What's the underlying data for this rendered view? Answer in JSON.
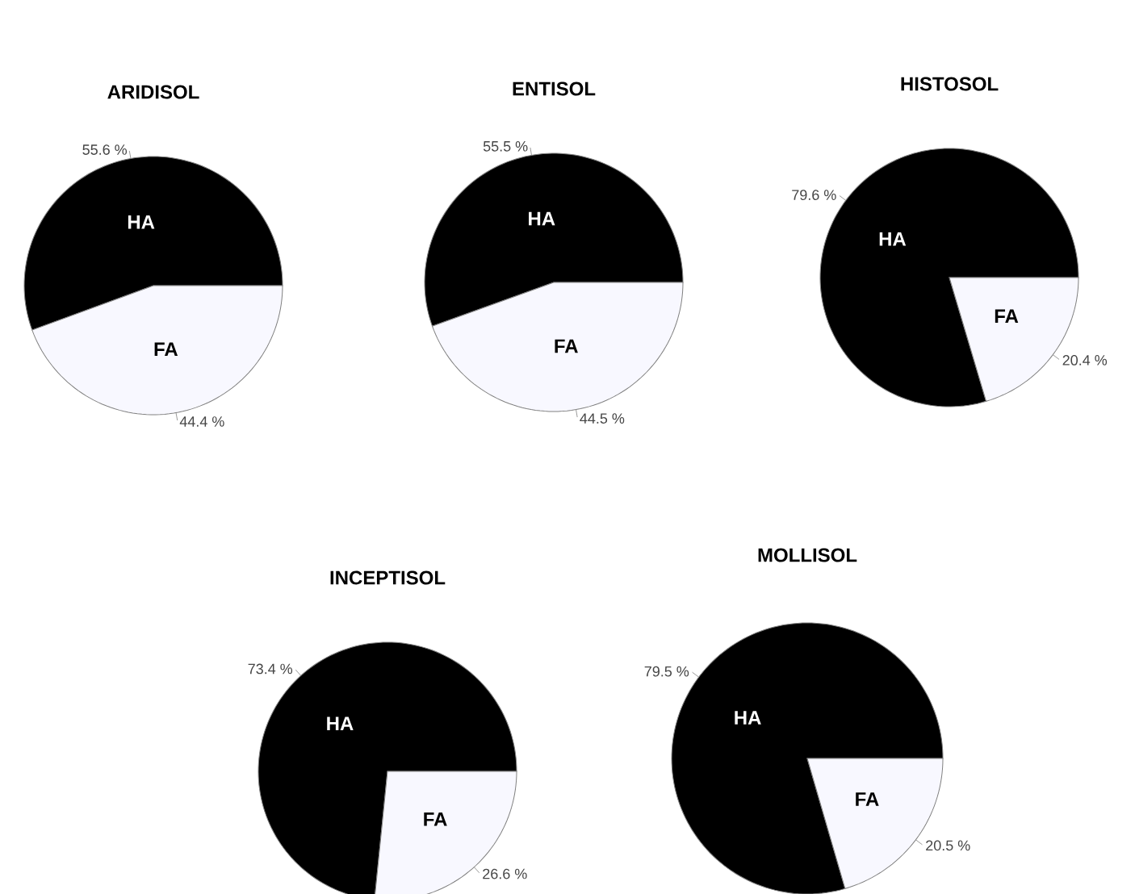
{
  "chart_data": [
    {
      "type": "pie",
      "title": "ARIDISOL",
      "categories": [
        "HA",
        "FA"
      ],
      "values": [
        55.6,
        44.4
      ],
      "colors": [
        "#000000",
        "#f8f8ff"
      ],
      "value_labels": [
        "55.6 %",
        "44.4 %"
      ]
    },
    {
      "type": "pie",
      "title": "ENTISOL",
      "categories": [
        "HA",
        "FA"
      ],
      "values": [
        55.5,
        44.5
      ],
      "colors": [
        "#000000",
        "#f8f8ff"
      ],
      "value_labels": [
        "55.5 %",
        "44.5 %"
      ]
    },
    {
      "type": "pie",
      "title": "HISTOSOL",
      "categories": [
        "HA",
        "FA"
      ],
      "values": [
        79.6,
        20.4
      ],
      "colors": [
        "#000000",
        "#f8f8ff"
      ],
      "value_labels": [
        "79.6 %",
        "20.4 %"
      ]
    },
    {
      "type": "pie",
      "title": "INCEPTISOL",
      "categories": [
        "HA",
        "FA"
      ],
      "values": [
        73.4,
        26.6
      ],
      "colors": [
        "#000000",
        "#f8f8ff"
      ],
      "value_labels": [
        "73.4 %",
        "26.6 %"
      ]
    },
    {
      "type": "pie",
      "title": "MOLLISOL",
      "categories": [
        "HA",
        "FA"
      ],
      "values": [
        79.5,
        20.5
      ],
      "colors": [
        "#000000",
        "#f8f8ff"
      ],
      "value_labels": [
        "79.5 %",
        "20.5 %"
      ]
    }
  ]
}
